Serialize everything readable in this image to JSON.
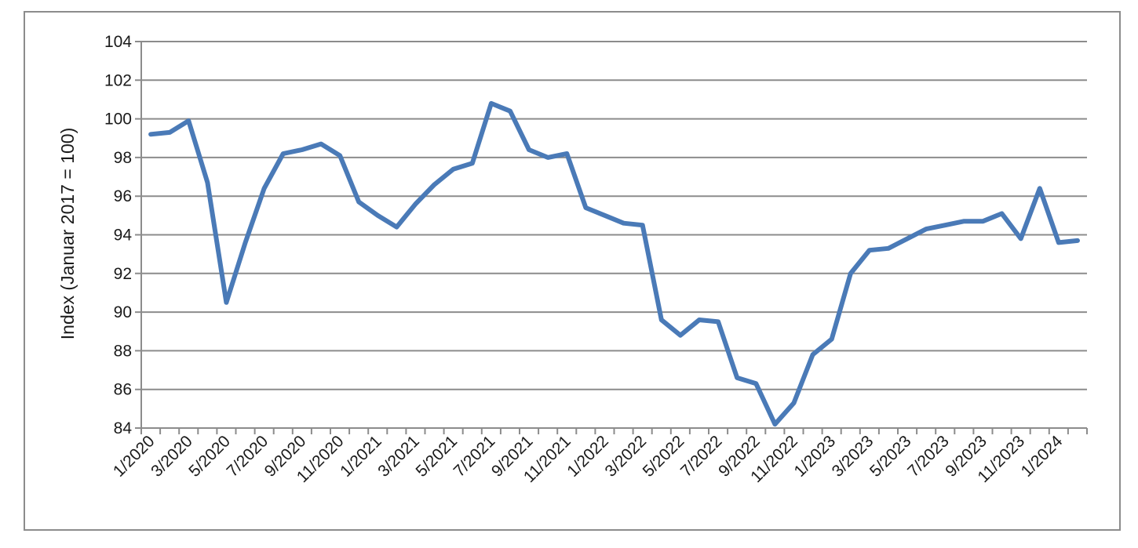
{
  "chart_data": {
    "type": "line",
    "ylabel": "Index (Januar 2017 = 100)",
    "xlabel": "",
    "title": "",
    "ylim": [
      84,
      104
    ],
    "yticks": [
      84,
      86,
      88,
      90,
      92,
      94,
      96,
      98,
      100,
      102,
      104
    ],
    "grid": true,
    "legend": "none",
    "colors": {
      "line": "#4a7ab7",
      "grid": "#8c8c8c",
      "axis": "#8c8c8c"
    },
    "x": [
      "1/2020",
      "2/2020",
      "3/2020",
      "4/2020",
      "5/2020",
      "6/2020",
      "7/2020",
      "8/2020",
      "9/2020",
      "10/2020",
      "11/2020",
      "12/2020",
      "1/2021",
      "2/2021",
      "3/2021",
      "4/2021",
      "5/2021",
      "6/2021",
      "7/2021",
      "8/2021",
      "9/2021",
      "10/2021",
      "11/2021",
      "12/2021",
      "1/2022",
      "2/2022",
      "3/2022",
      "4/2022",
      "5/2022",
      "6/2022",
      "7/2022",
      "8/2022",
      "9/2022",
      "10/2022",
      "11/2022",
      "12/2022",
      "1/2023",
      "2/2023",
      "3/2023",
      "4/2023",
      "5/2023",
      "6/2023",
      "7/2023",
      "8/2023",
      "9/2023",
      "10/2023",
      "11/2023",
      "12/2023",
      "1/2024",
      "2/2024"
    ],
    "xticklabels": [
      "1/2020",
      "3/2020",
      "5/2020",
      "7/2020",
      "9/2020",
      "11/2020",
      "1/2021",
      "3/2021",
      "5/2021",
      "7/2021",
      "9/2021",
      "11/2021",
      "1/2022",
      "3/2022",
      "5/2022",
      "7/2022",
      "9/2022",
      "11/2022",
      "1/2023",
      "3/2023",
      "5/2023",
      "7/2023",
      "9/2023",
      "11/2023",
      "1/2024"
    ],
    "series": [
      {
        "values": [
          99.2,
          99.3,
          99.9,
          96.7,
          90.5,
          93.6,
          96.4,
          98.2,
          98.4,
          98.7,
          98.1,
          95.7,
          95.0,
          94.4,
          95.6,
          96.6,
          97.4,
          97.7,
          100.8,
          100.4,
          98.4,
          98.0,
          98.2,
          95.4,
          95.0,
          94.6,
          94.5,
          89.6,
          88.8,
          89.6,
          89.5,
          86.6,
          86.3,
          84.2,
          85.3,
          87.8,
          88.6,
          92.0,
          93.2,
          93.3,
          93.8,
          94.3,
          94.5,
          94.7,
          94.7,
          95.1,
          93.8,
          96.4,
          93.6,
          93.7
        ]
      }
    ]
  }
}
